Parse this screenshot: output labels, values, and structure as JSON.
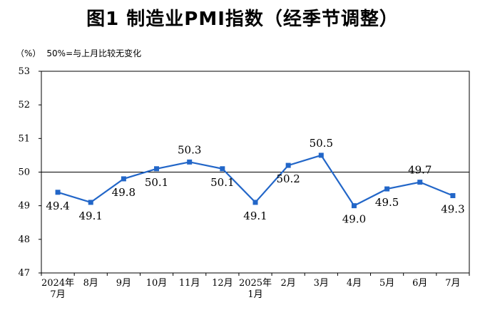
{
  "chart_data": {
    "type": "line",
    "title": "图1  制造业PMI指数（经季节调整）",
    "ylabel": "（%）",
    "note": "50%=与上月比较无变化",
    "ylim": [
      47,
      53
    ],
    "y_ticks": [
      47,
      48,
      49,
      50,
      51,
      52,
      53
    ],
    "reference_line": 50,
    "grid": false,
    "categories": [
      [
        "2024年",
        "7月"
      ],
      [
        "8月"
      ],
      [
        "9月"
      ],
      [
        "10月"
      ],
      [
        "11月"
      ],
      [
        "12月"
      ],
      [
        "2025年",
        "1月"
      ],
      [
        "2月"
      ],
      [
        "3月"
      ],
      [
        "4月"
      ],
      [
        "5月"
      ],
      [
        "6月"
      ],
      [
        "7月"
      ]
    ],
    "series": [
      {
        "values": [
          49.4,
          49.1,
          49.8,
          50.1,
          50.3,
          50.1,
          49.1,
          50.2,
          50.5,
          49.0,
          49.5,
          49.7,
          49.3
        ],
        "labels": [
          "49.4",
          "49.1",
          "49.8",
          "50.1",
          "50.3",
          "50.1",
          "49.1",
          "50.2",
          "50.5",
          "49.0",
          "49.5",
          "49.7",
          "49.3"
        ],
        "color": "#2266c8"
      }
    ]
  }
}
